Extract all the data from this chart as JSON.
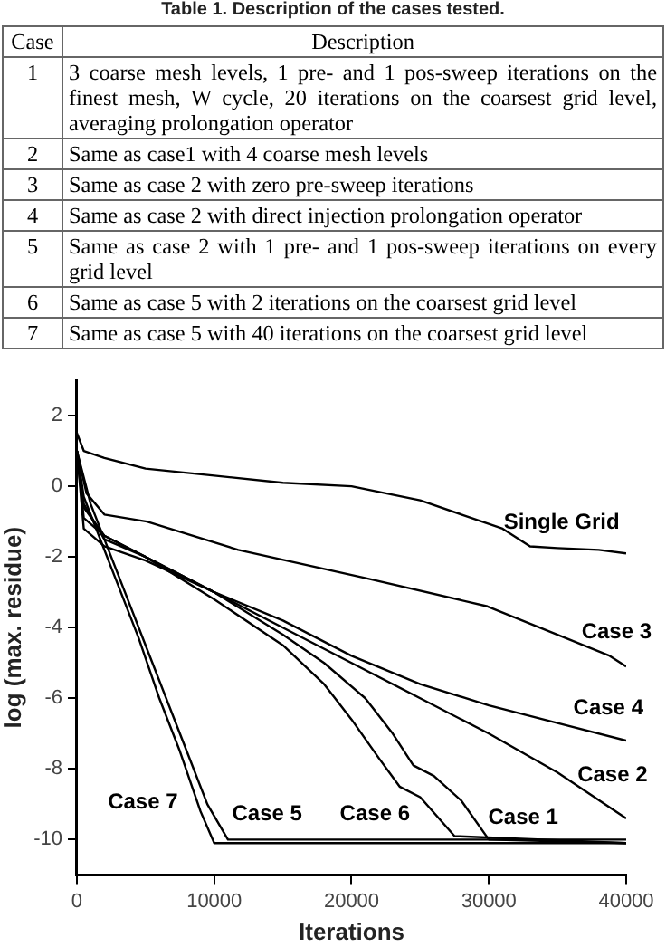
{
  "chart_data": {
    "type": "line",
    "xlabel": "Iterations",
    "ylabel": "log (max. residue)",
    "xlim": [
      0,
      40000
    ],
    "xticks": [
      0,
      10000,
      20000,
      30000,
      40000
    ],
    "ylim": [
      -11,
      3
    ],
    "yticks": [
      -10,
      -8,
      -6,
      -4,
      -2,
      0,
      2
    ],
    "grid": false,
    "legend": false,
    "marker": "none",
    "line_style": "solid",
    "series": [
      {
        "color": "#000000",
        "x": [
          0,
          500,
          2000,
          5000,
          10000,
          15000,
          20000,
          25000,
          28000,
          31000,
          33000,
          35000,
          38000,
          40000
        ],
        "values": [
          1.5,
          1,
          0.8,
          0.5,
          0.3,
          0.1,
          0,
          -0.4,
          -0.8,
          -1.2,
          -1.7,
          -1.75,
          -1.8,
          -1.9
        ]
      },
      {
        "color": "#000000",
        "x": [
          0,
          700,
          2000,
          5100,
          11750,
          21050,
          29900,
          38800,
          40000
        ],
        "values": [
          1,
          -0.2,
          -0.8,
          -1,
          -1.8,
          -2.6,
          -3.4,
          -4.8,
          -5.1
        ]
      },
      {
        "color": "#000000",
        "x": [
          0,
          500,
          2000,
          5000,
          10000,
          15000,
          20000,
          25000,
          30000,
          35000,
          40000
        ],
        "values": [
          1,
          -1.2,
          -1.7,
          -2.1,
          -3,
          -3.8,
          -4.8,
          -5.6,
          -6.2,
          -6.7,
          -7.2
        ]
      },
      {
        "color": "#000000",
        "x": [
          0,
          500,
          2000,
          5000,
          10000,
          15000,
          20000,
          25000,
          30000,
          35000,
          40000
        ],
        "values": [
          1,
          -0.9,
          -1.4,
          -2,
          -3,
          -4,
          -5,
          -6,
          -7,
          -8.1,
          -9.4
        ]
      },
      {
        "color": "#000000",
        "x": [
          0,
          500,
          2000,
          5000,
          10000,
          15000,
          18000,
          21000,
          23000,
          24500,
          26000,
          28000,
          30000,
          40000
        ],
        "values": [
          1,
          -0.5,
          -1.5,
          -2,
          -3,
          -4.2,
          -5,
          -6,
          -7,
          -7.9,
          -8.2,
          -8.9,
          -10,
          -10.1
        ]
      },
      {
        "color": "#000000",
        "x": [
          0,
          500,
          2000,
          5000,
          10000,
          15000,
          18000,
          20000,
          22000,
          23500,
          25000,
          27500,
          40000
        ],
        "values": [
          1,
          -0.6,
          -1.4,
          -2,
          -3.2,
          -4.5,
          -5.6,
          -6.6,
          -7.7,
          -8.5,
          -8.8,
          -9.9,
          -10.1
        ]
      },
      {
        "color": "#000000",
        "x": [
          0,
          1000,
          3000,
          5000,
          6500,
          8000,
          9500,
          11000,
          40000
        ],
        "values": [
          1,
          -0.5,
          -2.5,
          -4.5,
          -6,
          -7.5,
          -9,
          -10,
          -10
        ]
      },
      {
        "color": "#000000",
        "x": [
          0,
          500,
          2500,
          4500,
          6000,
          7500,
          9000,
          10000,
          40000
        ],
        "values": [
          1,
          -0.3,
          -2.3,
          -4.3,
          -6,
          -7.5,
          -9.2,
          -10.1,
          -10.1
        ]
      }
    ],
    "annotations": [
      "Table 1. Description of the cases tested.",
      "Case",
      "Description",
      "1",
      "3 coarse mesh levels, 1 pre- and 1 pos-sweep iterations on the finest mesh, W cycle, 20 iterations on the coarsest grid level, averaging prolongation operator",
      "2",
      "Same as case1 with 4 coarse mesh levels",
      "3",
      "Same as case 2 with zero pre-sweep iterations",
      "4",
      "Same as case 2 with direct injection prolongation operator",
      "5",
      "Same as case 2 with 1 pre- and 1 pos-sweep iterations on every grid level",
      "6",
      "Same as case 5 with 2 iterations on the coarsest grid level",
      "7",
      "Same as case 5 with 40 iterations on the coarsest grid level",
      "Case 7",
      {
        "text": "Single Grid",
        "x": 35300,
        "y": -1.75
      },
      {
        "text": "Case 3",
        "x": 39300,
        "y": -4.85
      },
      {
        "text": "Case 4",
        "x": 38700,
        "y": -7
      },
      {
        "text": "Case 2",
        "x": 39000,
        "y": -8.9
      },
      {
        "text": "Case 1",
        "x": 32500,
        "y": -10.1
      },
      {
        "text": "Case 6",
        "x": 21700,
        "y": -10
      },
      {
        "text": "Case 5",
        "x": 13850,
        "y": -10
      }
    ]
  }
}
